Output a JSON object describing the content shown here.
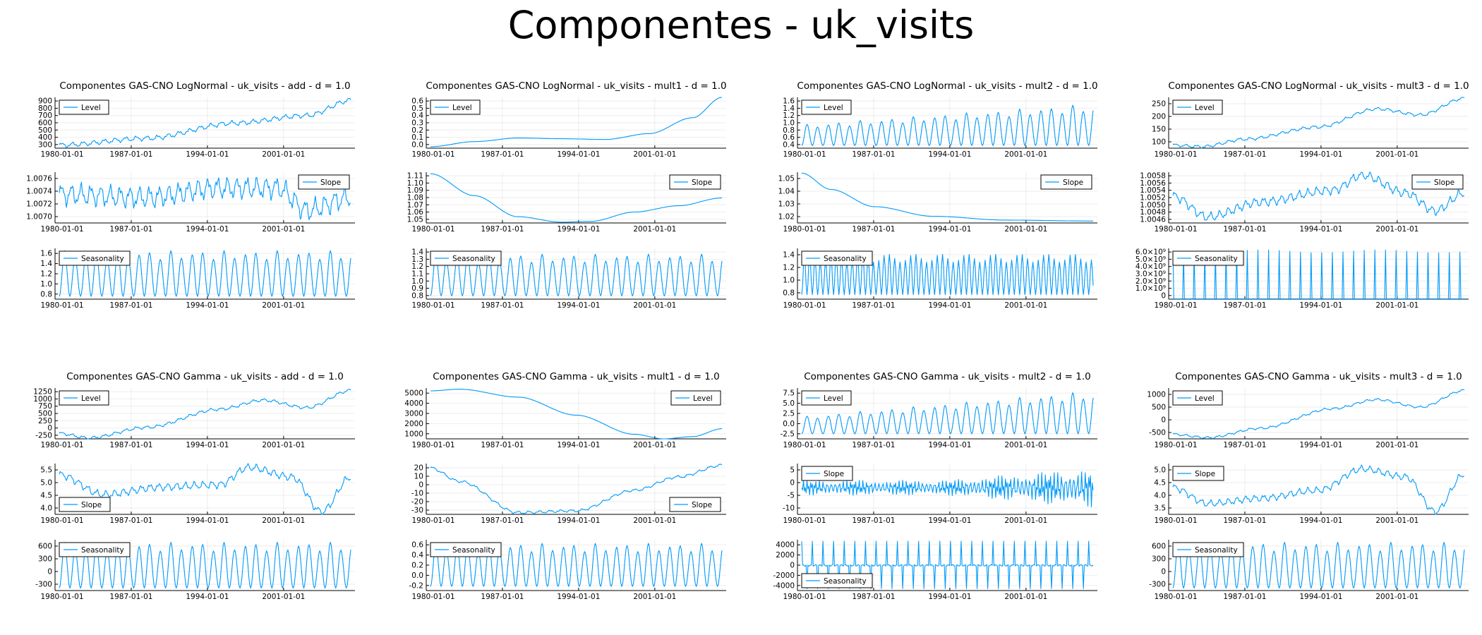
{
  "suptitle": "Componentes - uk_visits",
  "line_color": "#009AFA",
  "x_ticks": [
    "1980-01-01",
    "1987-01-01",
    "1994-01-01",
    "2001-01-01"
  ],
  "chart_data": [
    {
      "type": "line",
      "title": "Componentes GAS-CNO LogNormal - uk_visits - add - d = 1.0",
      "panels": [
        {
          "series": "Level",
          "ylim": [
            250,
            920
          ],
          "yticks": [
            "300",
            "400",
            "500",
            "600",
            "700",
            "800",
            "900"
          ],
          "legend": "top-left",
          "shape": {
            "kind": "trend",
            "pts": [
              [
                0,
                290
              ],
              [
                0.3,
                380
              ],
              [
                0.6,
                580
              ],
              [
                0.85,
                680
              ],
              [
                1,
                880
              ]
            ],
            "amp": 25,
            "period": 12
          }
        },
        {
          "series": "Slope",
          "ylim": [
            1.0069,
            1.0077
          ],
          "yticks": [
            "1.0070",
            "1.0072",
            "1.0074",
            "1.0076"
          ],
          "legend": "top-right",
          "shape": {
            "kind": "trend",
            "pts": [
              [
                0,
                1.00735
              ],
              [
                0.3,
                1.0073
              ],
              [
                0.55,
                1.00745
              ],
              [
                0.75,
                1.00745
              ],
              [
                0.85,
                1.0071
              ],
              [
                1,
                1.0073
              ]
            ],
            "amp": 0.00013,
            "period": 11
          }
        },
        {
          "series": "Seasonality",
          "ylim": [
            0.7,
            1.62
          ],
          "yticks": [
            "0.8",
            "1.0",
            "1.2",
            "1.4",
            "1.6"
          ],
          "legend": "top-left",
          "shape": {
            "kind": "season",
            "min": 0.75,
            "max": 1.58,
            "period": 12
          }
        }
      ]
    },
    {
      "type": "line",
      "title": "Componentes GAS-CNO LogNormal - uk_visits - mult1 - d = 1.0",
      "panels": [
        {
          "series": "Level",
          "ylim": [
            0,
            0.7
          ],
          "yticks": [
            "0.0",
            "0.1",
            "0.2",
            "0.3",
            "0.4",
            "0.5",
            "0.6"
          ],
          "legend": "top-left",
          "shape": {
            "kind": "smooth",
            "pts": [
              [
                0,
                0.02
              ],
              [
                0.15,
                0.09
              ],
              [
                0.3,
                0.14
              ],
              [
                0.45,
                0.13
              ],
              [
                0.6,
                0.12
              ],
              [
                0.75,
                0.2
              ],
              [
                0.9,
                0.42
              ],
              [
                1,
                0.7
              ]
            ]
          }
        },
        {
          "series": "Slope",
          "ylim": [
            1.05,
            1.115
          ],
          "yticks": [
            "1.05",
            "1.06",
            "1.07",
            "1.08",
            "1.09",
            "1.10",
            "1.11"
          ],
          "legend": "top-right",
          "shape": {
            "kind": "smooth",
            "pts": [
              [
                0,
                1.113
              ],
              [
                0.15,
                1.085
              ],
              [
                0.3,
                1.058
              ],
              [
                0.45,
                1.051
              ],
              [
                0.55,
                1.052
              ],
              [
                0.7,
                1.064
              ],
              [
                0.85,
                1.072
              ],
              [
                1,
                1.082
              ]
            ]
          }
        },
        {
          "series": "Seasonality",
          "ylim": [
            0.78,
            1.4
          ],
          "yticks": [
            "0.8",
            "0.9",
            "1.0",
            "1.1",
            "1.2",
            "1.3",
            "1.4"
          ],
          "legend": "top-left",
          "shape": {
            "kind": "season",
            "min": 0.82,
            "max": 1.33,
            "period": 12
          }
        }
      ]
    },
    {
      "type": "line",
      "title": "Componentes GAS-CNO LogNormal - uk_visits - mult2 - d = 1.0",
      "panels": [
        {
          "series": "Level",
          "ylim": [
            0.35,
            1.72
          ],
          "yticks": [
            "0.4",
            "0.6",
            "0.8",
            "1.0",
            "1.2",
            "1.4",
            "1.6"
          ],
          "legend": "top-left",
          "shape": {
            "kind": "season",
            "min": 0.42,
            "max": 1.55,
            "period": 12,
            "grow": 0.5
          }
        },
        {
          "series": "Slope",
          "ylim": [
            1.005,
            1.058
          ],
          "yticks": [
            "1.02",
            "1.03",
            "1.04",
            "1.05"
          ],
          "legend": "top-right",
          "shape": {
            "kind": "smooth",
            "pts": [
              [
                0,
                1.057
              ],
              [
                0.1,
                1.04
              ],
              [
                0.25,
                1.022
              ],
              [
                0.45,
                1.012
              ],
              [
                0.7,
                1.008
              ],
              [
                1,
                1.007
              ]
            ]
          }
        },
        {
          "series": "Seasonality",
          "ylim": [
            0.65,
            1.45
          ],
          "yticks": [
            "0.8",
            "1.0",
            "1.2",
            "1.4"
          ],
          "legend": "top-left",
          "shape": {
            "kind": "season",
            "min": 0.72,
            "max": 1.36,
            "period": 6
          }
        }
      ]
    },
    {
      "type": "line",
      "title": "Componentes GAS-CNO LogNormal - uk_visits - mult3 - d = 1.0",
      "panels": [
        {
          "series": "Level",
          "ylim": [
            90,
            258
          ],
          "yticks": [
            "100",
            "150",
            "200",
            "250"
          ],
          "legend": "top-left",
          "shape": {
            "kind": "trend",
            "pts": [
              [
                0,
                100
              ],
              [
                0.1,
                95
              ],
              [
                0.25,
                120
              ],
              [
                0.5,
                160
              ],
              [
                0.7,
                220
              ],
              [
                0.85,
                200
              ],
              [
                1,
                255
              ]
            ],
            "amp": 4,
            "period": 12
          }
        },
        {
          "series": "Slope",
          "ylim": [
            1.0043,
            1.006
          ],
          "yticks": [
            "1.0046",
            "1.0048",
            "1.0050",
            "1.0052",
            "1.0054",
            "1.0056",
            "1.0058"
          ],
          "legend": "top-right",
          "shape": {
            "kind": "trend",
            "pts": [
              [
                0,
                1.0052
              ],
              [
                0.12,
                1.0045
              ],
              [
                0.3,
                1.005
              ],
              [
                0.55,
                1.0054
              ],
              [
                0.65,
                1.0059
              ],
              [
                0.8,
                1.0053
              ],
              [
                0.9,
                1.0047
              ],
              [
                1,
                1.0053
              ]
            ],
            "amp": 0.00012,
            "period": 10
          }
        },
        {
          "series": "Seasonality",
          "ylim": [
            0,
            6.8
          ],
          "yticks": [
            "0",
            "1.0×10⁹",
            "2.0×10⁹",
            "3.0×10⁹",
            "4.0×10⁹",
            "5.0×10⁹",
            "6.0×10⁹"
          ],
          "legend": "top-left",
          "shape": {
            "kind": "spikes",
            "max": 6.6,
            "period": 12
          }
        }
      ]
    },
    {
      "type": "line",
      "title": "Componentes GAS-CNO Gamma - uk_visits - add - d = 1.0",
      "panels": [
        {
          "series": "Level",
          "ylim": [
            -280,
            1400
          ],
          "yticks": [
            "-250",
            "0",
            "250",
            "500",
            "750",
            "1000",
            "1250"
          ],
          "legend": "top-left",
          "shape": {
            "kind": "trend",
            "pts": [
              [
                0,
                -100
              ],
              [
                0.1,
                -250
              ],
              [
                0.3,
                100
              ],
              [
                0.55,
                700
              ],
              [
                0.7,
                1000
              ],
              [
                0.85,
                750
              ],
              [
                1,
                1320
              ]
            ],
            "amp": 40,
            "period": 12
          }
        },
        {
          "series": "Slope",
          "ylim": [
            3.9,
            5.95
          ],
          "yticks": [
            "4.0",
            "4.5",
            "5.0",
            "5.5"
          ],
          "legend": "bottom-left",
          "shape": {
            "kind": "trend",
            "pts": [
              [
                0,
                5.5
              ],
              [
                0.15,
                4.7
              ],
              [
                0.35,
                5.0
              ],
              [
                0.55,
                5.1
              ],
              [
                0.65,
                5.8
              ],
              [
                0.8,
                5.4
              ],
              [
                0.9,
                4.0
              ],
              [
                1,
                5.4
              ]
            ],
            "amp": 0.12,
            "period": 10
          }
        },
        {
          "series": "Seasonality",
          "ylim": [
            -480,
            780
          ],
          "yticks": [
            "-300",
            "0",
            "300",
            "600"
          ],
          "legend": "top-left",
          "shape": {
            "kind": "season",
            "min": -420,
            "max": 720,
            "period": 12
          }
        }
      ]
    },
    {
      "type": "line",
      "title": "Componentes GAS-CNO Gamma - uk_visits - mult1 - d = 1.0",
      "panels": [
        {
          "series": "Level",
          "ylim": [
            700,
            5200
          ],
          "yticks": [
            "1000",
            "2000",
            "3000",
            "4000",
            "5000"
          ],
          "legend": "top-right",
          "shape": {
            "kind": "smooth",
            "pts": [
              [
                0,
                4950
              ],
              [
                0.1,
                5100
              ],
              [
                0.3,
                4400
              ],
              [
                0.5,
                2800
              ],
              [
                0.7,
                1100
              ],
              [
                0.8,
                700
              ],
              [
                0.9,
                900
              ],
              [
                1,
                1600
              ]
            ]
          }
        },
        {
          "series": "Slope",
          "ylim": [
            -32,
            25
          ],
          "yticks": [
            "-30",
            "-20",
            "-10",
            "0",
            "10",
            "20"
          ],
          "legend": "bottom-right",
          "shape": {
            "kind": "trend",
            "pts": [
              [
                0,
                20
              ],
              [
                0.1,
                5
              ],
              [
                0.3,
                -30
              ],
              [
                0.5,
                -28
              ],
              [
                0.7,
                -5
              ],
              [
                0.85,
                10
              ],
              [
                1,
                23
              ]
            ],
            "amp": 1.2,
            "period": 12
          }
        },
        {
          "series": "Seasonality",
          "ylim": [
            -0.28,
            0.72
          ],
          "yticks": [
            "-0.2",
            "0.0",
            "0.2",
            "0.4",
            "0.6"
          ],
          "legend": "top-left",
          "shape": {
            "kind": "season",
            "min": -0.2,
            "max": 0.65,
            "period": 12
          }
        }
      ]
    },
    {
      "type": "line",
      "title": "Componentes GAS-CNO Gamma - uk_visits - mult2 - d = 1.0",
      "panels": [
        {
          "series": "Level",
          "ylim": [
            -4.8,
            8.3
          ],
          "yticks": [
            "-2.5",
            "0.0",
            "2.5",
            "5.0",
            "7.5"
          ],
          "legend": "top-left",
          "shape": {
            "kind": "season",
            "min": -3.5,
            "max": 7.6,
            "period": 12,
            "grow": 0.6
          }
        },
        {
          "series": "Slope",
          "ylim": [
            -10.5,
            9.5
          ],
          "yticks": [
            "-10",
            "-5",
            "0",
            "5"
          ],
          "legend": "top-left",
          "shape": {
            "kind": "noise",
            "center": 0,
            "amp": 3,
            "amp2": 8,
            "period": 5
          }
        },
        {
          "series": "Seasonality",
          "ylim": [
            -5200,
            5300
          ],
          "yticks": [
            "-4000",
            "-2000",
            "0",
            "2000",
            "4000"
          ],
          "legend": "bottom-left",
          "shape": {
            "kind": "bigseason",
            "min": -4800,
            "max": 5000,
            "period": 12
          }
        }
      ]
    },
    {
      "type": "line",
      "title": "Componentes GAS-CNO Gamma - uk_visits - mult3 - d = 1.0",
      "panels": [
        {
          "series": "Level",
          "ylim": [
            -600,
            1080
          ],
          "yticks": [
            "-500",
            "0",
            "500",
            "1000"
          ],
          "legend": "top-left",
          "shape": {
            "kind": "trend",
            "pts": [
              [
                0,
                -450
              ],
              [
                0.12,
                -560
              ],
              [
                0.3,
                -250
              ],
              [
                0.55,
                400
              ],
              [
                0.7,
                700
              ],
              [
                0.85,
                450
              ],
              [
                1,
                1000
              ]
            ],
            "amp": 30,
            "period": 12
          }
        },
        {
          "series": "Slope",
          "ylim": [
            3.2,
            5.1
          ],
          "yticks": [
            "3.5",
            "4.0",
            "4.5",
            "5.0"
          ],
          "legend": "top-left",
          "shape": {
            "kind": "trend",
            "pts": [
              [
                0,
                4.2
              ],
              [
                0.12,
                3.6
              ],
              [
                0.3,
                3.8
              ],
              [
                0.5,
                4.1
              ],
              [
                0.65,
                4.9
              ],
              [
                0.8,
                4.6
              ],
              [
                0.9,
                3.3
              ],
              [
                1,
                4.7
              ]
            ],
            "amp": 0.1,
            "period": 10
          }
        },
        {
          "series": "Seasonality",
          "ylim": [
            -480,
            780
          ],
          "yticks": [
            "-300",
            "0",
            "300",
            "600"
          ],
          "legend": "top-left",
          "shape": {
            "kind": "season",
            "min": -420,
            "max": 720,
            "period": 12
          }
        }
      ]
    }
  ]
}
